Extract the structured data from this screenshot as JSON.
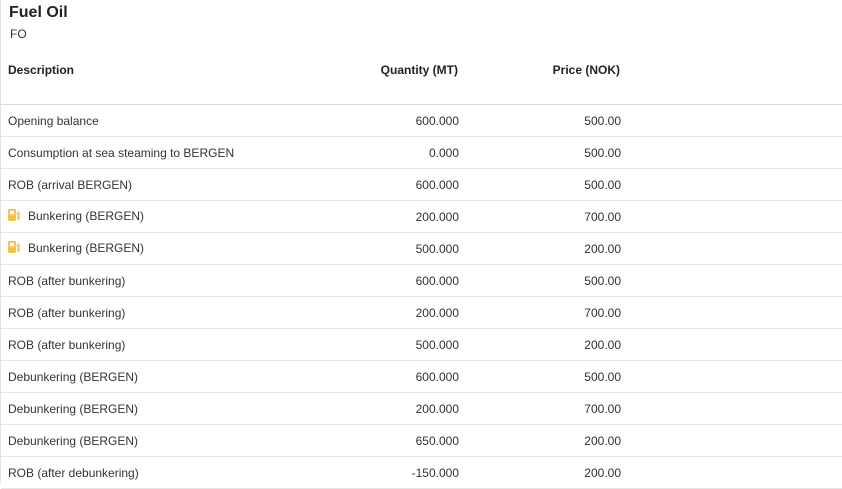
{
  "header": {
    "title": "Fuel Oil",
    "subtitle": "FO"
  },
  "columns": {
    "description": "Description",
    "quantity": "Quantity (MT)",
    "price": "Price (NOK)"
  },
  "icon_color": "#f2c14e",
  "rows": [
    {
      "description": "Opening balance",
      "quantity": "600.000",
      "price": "500.00",
      "icon": null
    },
    {
      "description": "Consumption at sea steaming to BERGEN",
      "quantity": "0.000",
      "price": "500.00",
      "icon": null
    },
    {
      "description": "ROB (arrival BERGEN)",
      "quantity": "600.000",
      "price": "500.00",
      "icon": null
    },
    {
      "description": "Bunkering (BERGEN)",
      "quantity": "200.000",
      "price": "700.00",
      "icon": "fuel-pump-icon"
    },
    {
      "description": "Bunkering (BERGEN)",
      "quantity": "500.000",
      "price": "200.00",
      "icon": "fuel-pump-icon"
    },
    {
      "description": "ROB (after bunkering)",
      "quantity": "600.000",
      "price": "500.00",
      "icon": null
    },
    {
      "description": "ROB (after bunkering)",
      "quantity": "200.000",
      "price": "700.00",
      "icon": null
    },
    {
      "description": "ROB (after bunkering)",
      "quantity": "500.000",
      "price": "200.00",
      "icon": null
    },
    {
      "description": "Debunkering (BERGEN)",
      "quantity": "600.000",
      "price": "500.00",
      "icon": null
    },
    {
      "description": "Debunkering (BERGEN)",
      "quantity": "200.000",
      "price": "700.00",
      "icon": null
    },
    {
      "description": "Debunkering (BERGEN)",
      "quantity": "650.000",
      "price": "200.00",
      "icon": null
    },
    {
      "description": "ROB (after debunkering)",
      "quantity": "-150.000",
      "price": "200.00",
      "icon": null
    }
  ]
}
